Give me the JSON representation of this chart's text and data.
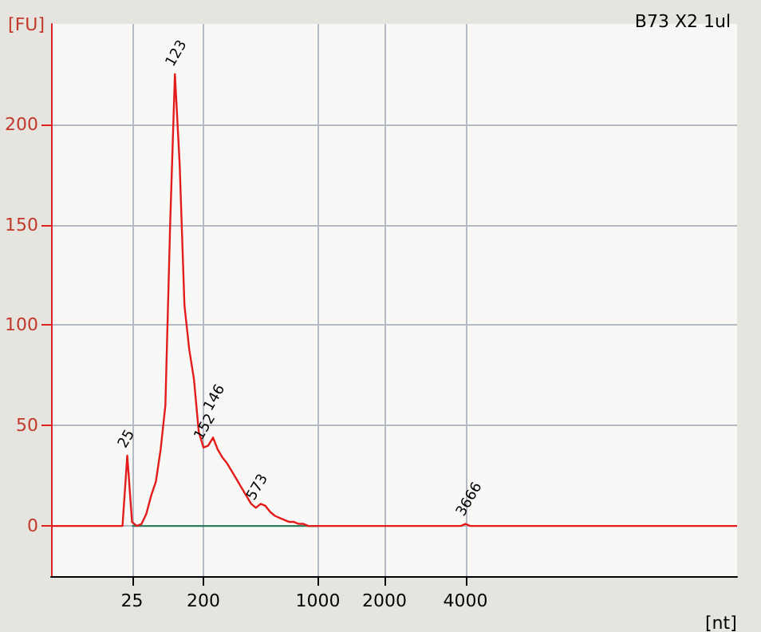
{
  "chart_data": {
    "type": "line",
    "title": "B73 X2 1ul",
    "ylabel": "[FU]",
    "xlabel": "[nt]",
    "categories": [
      null,
      null,
      null,
      null,
      null,
      null,
      null,
      null,
      null,
      null,
      null,
      null,
      null,
      null,
      null,
      null,
      null,
      "25",
      null,
      null,
      null,
      null,
      null,
      null,
      null,
      null,
      null,
      null,
      null,
      null,
      null,
      null,
      "200",
      null,
      null,
      null,
      null,
      null,
      null,
      null,
      null,
      null,
      null,
      null,
      null,
      null,
      null,
      null,
      null,
      null,
      null,
      null,
      null,
      null,
      null,
      null,
      "1000",
      null,
      null,
      null,
      null,
      null,
      null,
      null,
      null,
      null,
      null,
      null,
      null,
      null,
      "2000",
      null,
      null,
      null,
      null,
      null,
      null,
      null,
      null,
      null,
      null,
      null,
      null,
      null,
      null,
      null,
      null,
      "4000",
      null,
      null,
      null,
      null,
      null,
      null,
      null,
      null,
      null,
      null,
      null,
      null,
      null,
      null,
      null,
      null,
      null,
      null,
      null,
      null,
      null,
      null,
      null,
      null,
      null,
      null,
      null,
      null,
      null,
      null,
      null,
      null,
      null,
      null,
      null,
      null,
      null,
      null,
      null,
      null,
      null,
      null,
      null,
      null,
      null,
      null,
      null,
      null,
      null,
      null,
      null,
      null,
      null,
      null,
      null,
      null,
      null
    ],
    "series": [
      {
        "color": "#e31b1b",
        "values": [
          0,
          0,
          0,
          0,
          0,
          0,
          0,
          0,
          0,
          0,
          0,
          0,
          0,
          0,
          0,
          0,
          35,
          2,
          0,
          1,
          6,
          15,
          22,
          38,
          60,
          150,
          225,
          180,
          110,
          88,
          73,
          47,
          39,
          40,
          44,
          38,
          34,
          31,
          27,
          23,
          19,
          15,
          11,
          9,
          11,
          10,
          7,
          5,
          4,
          3,
          2,
          2,
          1,
          1,
          0,
          0,
          0,
          0,
          0,
          0,
          0,
          0,
          0,
          0,
          0,
          0,
          0,
          0,
          0,
          0,
          0,
          0,
          0,
          0,
          0,
          0,
          0,
          0,
          0,
          0,
          0,
          0,
          0,
          0,
          0,
          0,
          0,
          1,
          0,
          0,
          0,
          0,
          0,
          0,
          0,
          0,
          0,
          0,
          0,
          0,
          0,
          0,
          0,
          0,
          0,
          0,
          0,
          0,
          0,
          0,
          0,
          0,
          0,
          0,
          0,
          0,
          0,
          0,
          0,
          0,
          0,
          0,
          0,
          0,
          0,
          0,
          0,
          0,
          0,
          0,
          0,
          0,
          0,
          0,
          0,
          0,
          0,
          0,
          0,
          0,
          0,
          0,
          0,
          0,
          0
        ]
      },
      {
        "color": "#2e7d5b",
        "values": [
          null,
          null,
          null,
          null,
          null,
          null,
          null,
          null,
          null,
          null,
          null,
          null,
          null,
          null,
          null,
          null,
          null,
          0,
          0,
          0,
          0,
          0,
          0,
          0,
          0,
          0,
          0,
          0,
          0,
          0,
          0,
          0,
          0,
          0,
          0,
          0,
          0,
          0,
          0,
          0,
          0,
          0,
          0,
          0,
          0,
          0,
          0,
          0,
          0,
          0,
          0,
          0,
          0,
          0,
          0,
          0,
          0,
          null,
          null,
          null,
          null,
          null,
          null,
          null,
          null,
          null,
          null,
          null,
          null,
          null,
          null,
          null,
          null,
          null,
          null,
          null,
          null,
          null,
          null,
          null,
          null,
          null,
          null,
          null,
          null,
          null,
          null,
          null,
          null,
          null,
          null,
          null,
          null,
          null,
          null,
          null,
          null,
          null,
          null,
          null,
          null,
          null,
          null,
          null,
          null,
          null,
          null,
          null,
          null,
          null,
          null,
          null,
          null,
          null,
          null,
          null,
          null,
          null,
          null,
          null,
          null,
          null,
          null,
          null,
          null,
          null,
          null,
          null,
          null,
          null,
          null,
          null,
          null,
          null,
          null,
          null,
          null,
          null,
          null,
          null,
          null,
          null,
          null,
          null,
          null
        ]
      }
    ],
    "annotations": [
      {
        "text": "25",
        "y": 35
      },
      {
        "text": "123",
        "y": 225
      },
      {
        "text": "152",
        "y": 39
      },
      {
        "text": "146",
        "y": 44
      },
      {
        "text": "573",
        "y": 9
      },
      {
        "text": "3666",
        "y": 1
      }
    ],
    "ylim": [
      -25,
      250
    ],
    "yticks": [
      0,
      50,
      100,
      150,
      200
    ],
    "grid": true,
    "marker": "none",
    "line_style": "solid"
  }
}
